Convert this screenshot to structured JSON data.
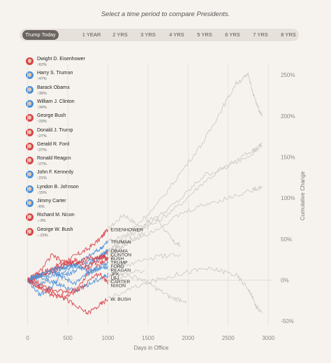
{
  "subtitle": "Select a time period to compare Presidents.",
  "periods": [
    "Trump Today",
    "1 YEAR",
    "2 YRS",
    "3 YRS",
    "4 YRS",
    "5 YRS",
    "6 YRS",
    "7 YRS",
    "8 YRS"
  ],
  "active_period": "Trump Today",
  "colors": {
    "republican": "#d9434a",
    "democrat": "#4a90d9",
    "faded": "#cdc8c2",
    "background": "#f6f3ee"
  },
  "legend": [
    {
      "name": "Dwight D. Eisenhower",
      "change": "↑62%",
      "party": "republican",
      "icon": "president-portrait-icon"
    },
    {
      "name": "Harry S. Truman",
      "change": "↑47%",
      "party": "democrat",
      "icon": "president-portrait-icon"
    },
    {
      "name": "Barack Obama",
      "change": "↑36%",
      "party": "democrat",
      "icon": "president-portrait-icon"
    },
    {
      "name": "William J. Clinton",
      "change": "↑34%",
      "party": "democrat",
      "icon": "president-portrait-icon"
    },
    {
      "name": "George Bush",
      "change": "↑33%",
      "party": "republican",
      "icon": "president-portrait-icon"
    },
    {
      "name": "Donald J. Trump",
      "change": "↑27%",
      "party": "republican",
      "icon": "president-portrait-icon"
    },
    {
      "name": "Gerald R. Ford",
      "change": "↑27%",
      "party": "republican",
      "icon": "president-portrait-icon"
    },
    {
      "name": "Ronald Reagan",
      "change": "↑27%",
      "party": "republican",
      "icon": "president-portrait-icon"
    },
    {
      "name": "John F. Kennedy",
      "change": "↑21%",
      "party": "democrat",
      "icon": "president-portrait-icon"
    },
    {
      "name": "Lyndon B. Johnson",
      "change": "↑15%",
      "party": "democrat",
      "icon": "president-portrait-icon"
    },
    {
      "name": "Jimmy Carter",
      "change": "↑6%",
      "party": "democrat",
      "icon": "president-portrait-icon"
    },
    {
      "name": "Richard M. Nixon",
      "change": "↓-3%",
      "party": "republican",
      "icon": "president-portrait-icon"
    },
    {
      "name": "George W. Bush",
      "change": "↓-23%",
      "party": "republican",
      "icon": "president-portrait-icon"
    }
  ],
  "chart_data": {
    "type": "line",
    "title": "",
    "xlabel": "Days in Office",
    "ylabel": "Cumulative Change",
    "xlim": [
      -40,
      3050
    ],
    "ylim": [
      -55,
      263
    ],
    "xticks": [
      0,
      500,
      1000,
      1500,
      2000,
      2500,
      3000
    ],
    "yticks": [
      -50,
      0,
      50,
      100,
      150,
      200,
      250
    ],
    "ytick_labels": [
      "-50%",
      "0%",
      "50%",
      "100%",
      "150%",
      "200%",
      "250%"
    ],
    "highlight_end_day": 1000,
    "series": [
      {
        "name": "EISENHOWER",
        "party": "republican",
        "end_label": "EISENHOWER",
        "x": [
          0,
          150,
          300,
          450,
          600,
          750,
          900,
          1000,
          1200,
          1400,
          1600,
          1800,
          1900
        ],
        "y": [
          0,
          8,
          14,
          22,
          30,
          38,
          50,
          62,
          80,
          65,
          78,
          48,
          42
        ]
      },
      {
        "name": "TRUMAN",
        "party": "democrat",
        "end_label": "TRUMAN",
        "x": [
          0,
          150,
          300,
          450,
          600,
          750,
          900,
          1000,
          1300,
          1600,
          1900,
          2200,
          2500,
          2800,
          2920
        ],
        "y": [
          0,
          -6,
          5,
          15,
          20,
          28,
          38,
          47,
          58,
          70,
          92,
          120,
          140,
          158,
          166
        ]
      },
      {
        "name": "OBAMA",
        "party": "democrat",
        "end_label": "OBAMA",
        "x": [
          0,
          150,
          300,
          450,
          600,
          750,
          900,
          1000,
          1300,
          1600,
          1900,
          2200,
          2500,
          2800,
          2920
        ],
        "y": [
          0,
          -18,
          -8,
          10,
          18,
          22,
          30,
          36,
          55,
          75,
          98,
          128,
          138,
          155,
          164
        ]
      },
      {
        "name": "CLINTON",
        "party": "democrat",
        "end_label": "CLINTON",
        "x": [
          0,
          150,
          300,
          450,
          600,
          750,
          900,
          1000,
          1300,
          1600,
          1900,
          2200,
          2400,
          2600,
          2750,
          2850,
          2920
        ],
        "y": [
          0,
          4,
          8,
          6,
          12,
          18,
          28,
          34,
          62,
          90,
          130,
          170,
          205,
          240,
          250,
          215,
          200
        ]
      },
      {
        "name": "BUSH",
        "party": "republican",
        "end_label": "BUSH",
        "x": [
          0,
          150,
          300,
          450,
          600,
          750,
          900,
          1000,
          1150,
          1300,
          1460
        ],
        "y": [
          0,
          6,
          10,
          18,
          22,
          14,
          26,
          33,
          40,
          50,
          58
        ]
      },
      {
        "name": "TRUMP",
        "party": "republican",
        "end_label": "TRUMP",
        "x": [
          0,
          150,
          300,
          450,
          600,
          750,
          900,
          1000
        ],
        "y": [
          0,
          5,
          12,
          20,
          24,
          18,
          30,
          27
        ]
      },
      {
        "name": "FORD",
        "party": "republican",
        "end_label": "FORD",
        "x": [
          0,
          150,
          300,
          450,
          600,
          750,
          900,
          1000
        ],
        "y": [
          0,
          10,
          30,
          22,
          20,
          26,
          28,
          27
        ]
      },
      {
        "name": "REAGAN",
        "party": "republican",
        "end_label": "REAGAN",
        "x": [
          0,
          150,
          300,
          450,
          600,
          750,
          900,
          1000,
          1300,
          1600,
          1900,
          2200,
          2500,
          2800,
          2920
        ],
        "y": [
          0,
          -4,
          -10,
          -15,
          -12,
          8,
          20,
          27,
          48,
          62,
          80,
          92,
          100,
          110,
          114
        ]
      },
      {
        "name": "JFK",
        "party": "democrat",
        "end_label": "JFK",
        "x": [
          0,
          150,
          300,
          450,
          600,
          750,
          900,
          1000
        ],
        "y": [
          0,
          6,
          14,
          2,
          -4,
          8,
          16,
          21
        ]
      },
      {
        "name": "LBJ",
        "party": "democrat",
        "end_label": "LBJ",
        "x": [
          0,
          150,
          300,
          450,
          600,
          750,
          900,
          1000,
          1300,
          1600,
          1900
        ],
        "y": [
          0,
          6,
          12,
          16,
          18,
          10,
          14,
          15,
          20,
          28,
          32
        ]
      },
      {
        "name": "CARTER",
        "party": "democrat",
        "end_label": "CARTER",
        "x": [
          0,
          150,
          300,
          450,
          600,
          750,
          900,
          1000,
          1200,
          1460
        ],
        "y": [
          0,
          4,
          -2,
          -8,
          -12,
          -6,
          2,
          6,
          8,
          12
        ]
      },
      {
        "name": "NIXON",
        "party": "republican",
        "end_label": "NIXON",
        "x": [
          0,
          150,
          300,
          450,
          600,
          750,
          900,
          1000,
          1200,
          1400,
          1600,
          1800,
          1980
        ],
        "y": [
          0,
          -8,
          -18,
          -22,
          -14,
          -2,
          8,
          -3,
          6,
          2,
          -10,
          -22,
          -25
        ]
      },
      {
        "name": "W. BUSH",
        "party": "republican",
        "end_label": "W. BUSH",
        "x": [
          0,
          150,
          300,
          450,
          600,
          750,
          900,
          1000,
          1300,
          1600,
          1900,
          2200,
          2400,
          2600,
          2750,
          2850,
          2920
        ],
        "y": [
          0,
          -10,
          -15,
          -20,
          -32,
          -40,
          -30,
          -23,
          -10,
          0,
          8,
          14,
          12,
          6,
          -10,
          -32,
          -40
        ]
      }
    ]
  }
}
